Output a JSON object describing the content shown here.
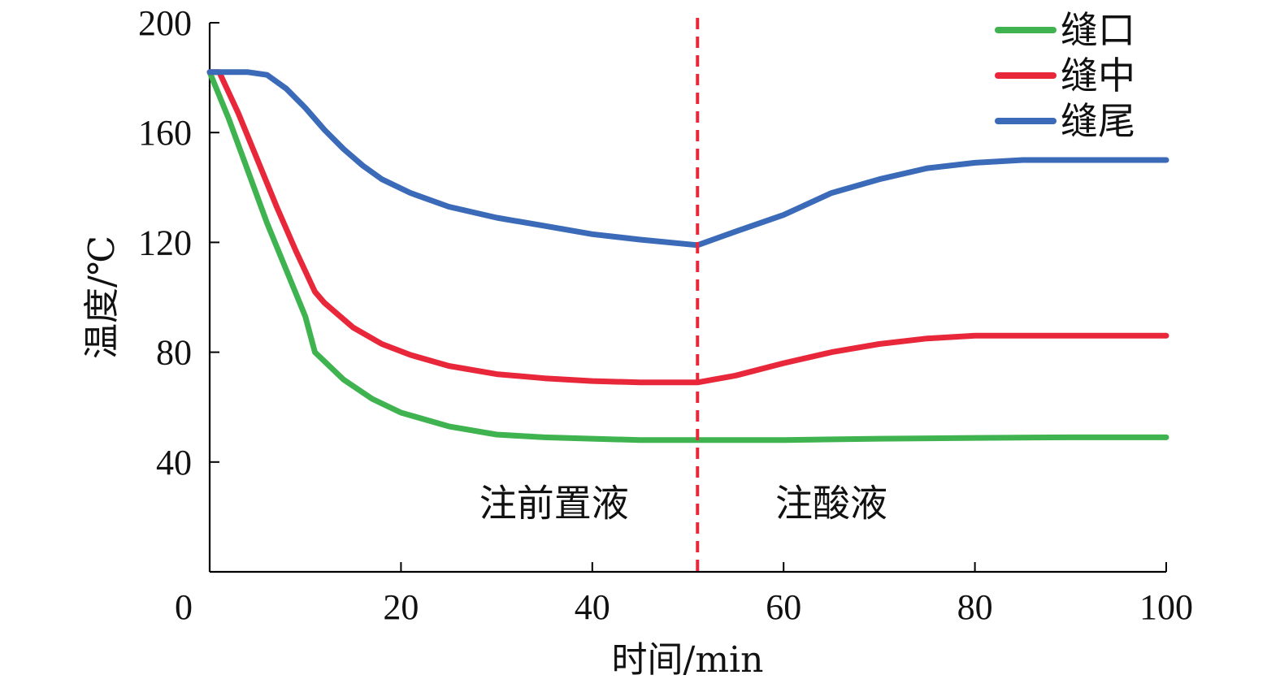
{
  "chart_data": {
    "type": "line",
    "xlabel": "时间/min",
    "ylabel": "温度/℃",
    "xlim": [
      0,
      100
    ],
    "ylim": [
      0,
      200
    ],
    "x_ticks": [
      0,
      20,
      40,
      60,
      80,
      100
    ],
    "y_ticks": [
      40,
      80,
      120,
      160,
      200
    ],
    "legend_position": "top-right",
    "grid": false,
    "divider": {
      "x": 51,
      "color": "#e8283a",
      "style": "dashed"
    },
    "annotations": [
      {
        "text": "注前置液",
        "x": 36,
        "y": 25
      },
      {
        "text": "注酸液",
        "x": 65,
        "y": 25
      }
    ],
    "series": [
      {
        "name": "缝口",
        "color": "#3fb34f",
        "points": [
          [
            0,
            182
          ],
          [
            2,
            165
          ],
          [
            4,
            146
          ],
          [
            6,
            127
          ],
          [
            8,
            110
          ],
          [
            10,
            93
          ],
          [
            11,
            80
          ],
          [
            14,
            70
          ],
          [
            17,
            63
          ],
          [
            20,
            58
          ],
          [
            25,
            53
          ],
          [
            30,
            50
          ],
          [
            35,
            49
          ],
          [
            40,
            48.5
          ],
          [
            45,
            48
          ],
          [
            51,
            48
          ],
          [
            60,
            48
          ],
          [
            70,
            48.5
          ],
          [
            80,
            48.8
          ],
          [
            90,
            49
          ],
          [
            100,
            49
          ]
        ]
      },
      {
        "name": "缝中",
        "color": "#e8283a",
        "points": [
          [
            0,
            182
          ],
          [
            1,
            182
          ],
          [
            3,
            167
          ],
          [
            5,
            150
          ],
          [
            7,
            133
          ],
          [
            9,
            117
          ],
          [
            11,
            102
          ],
          [
            12,
            98
          ],
          [
            15,
            89
          ],
          [
            18,
            83
          ],
          [
            21,
            79
          ],
          [
            25,
            75
          ],
          [
            30,
            72
          ],
          [
            35,
            70.5
          ],
          [
            40,
            69.5
          ],
          [
            45,
            69
          ],
          [
            51,
            69
          ],
          [
            55,
            71.5
          ],
          [
            60,
            76
          ],
          [
            65,
            80
          ],
          [
            70,
            83
          ],
          [
            75,
            85
          ],
          [
            80,
            86
          ],
          [
            90,
            86
          ],
          [
            100,
            86
          ]
        ]
      },
      {
        "name": "缝尾",
        "color": "#3a6ab8",
        "points": [
          [
            0,
            182
          ],
          [
            4,
            182
          ],
          [
            6,
            181
          ],
          [
            8,
            176
          ],
          [
            10,
            169
          ],
          [
            12,
            161
          ],
          [
            14,
            154
          ],
          [
            16,
            148
          ],
          [
            18,
            143
          ],
          [
            21,
            138
          ],
          [
            25,
            133
          ],
          [
            30,
            129
          ],
          [
            35,
            126
          ],
          [
            40,
            123
          ],
          [
            45,
            121
          ],
          [
            51,
            119
          ],
          [
            55,
            124
          ],
          [
            60,
            130
          ],
          [
            65,
            138
          ],
          [
            70,
            143
          ],
          [
            75,
            147
          ],
          [
            80,
            149
          ],
          [
            85,
            150
          ],
          [
            90,
            150
          ],
          [
            100,
            150
          ]
        ]
      }
    ]
  }
}
